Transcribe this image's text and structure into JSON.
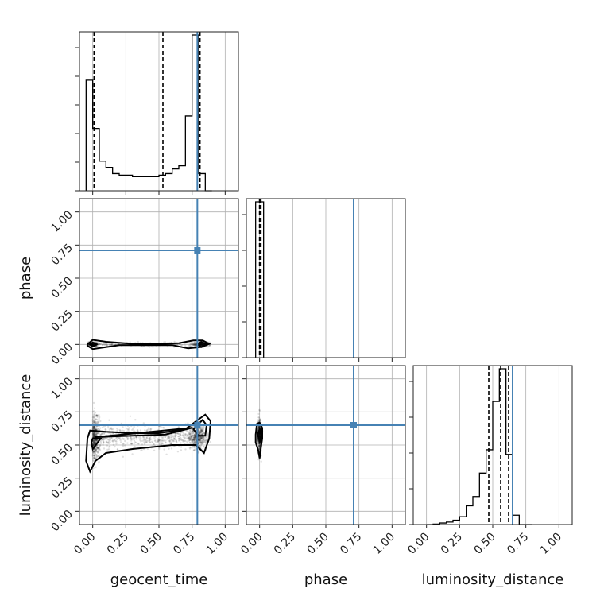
{
  "chart_data": {
    "type": "corner",
    "parameters": [
      "geocent_time",
      "phase",
      "luminosity_distance"
    ],
    "axis_labels": {
      "geocent_time": "geocent_time",
      "phase": "phase",
      "luminosity_distance": "luminosity_distance"
    },
    "range": [
      -0.1,
      1.1
    ],
    "ticks": [
      "0.00",
      "0.25",
      "0.50",
      "0.75",
      "1.00"
    ],
    "tick_values": [
      0,
      0.25,
      0.5,
      0.75,
      1.0
    ],
    "grid": true,
    "truths": {
      "geocent_time": 0.79,
      "phase": 0.71,
      "luminosity_distance": 0.65
    },
    "truth_color": "#4682b4",
    "histograms": {
      "geocent_time": {
        "bin_edges": [
          -0.05,
          0.0,
          0.05,
          0.1,
          0.15,
          0.2,
          0.25,
          0.3,
          0.35,
          0.4,
          0.45,
          0.5,
          0.55,
          0.6,
          0.65,
          0.7,
          0.75,
          0.8,
          0.85,
          0.9
        ],
        "counts": [
          0.71,
          0.4,
          0.19,
          0.15,
          0.11,
          0.1,
          0.1,
          0.09,
          0.09,
          0.09,
          0.09,
          0.1,
          0.11,
          0.14,
          0.16,
          0.48,
          1.0,
          0.11,
          0.0
        ],
        "quantiles": [
          0.01,
          0.53,
          0.81
        ]
      },
      "phase": {
        "bin_edges": [
          -0.03,
          0.0,
          0.03
        ],
        "counts": [
          1.0,
          1.0
        ],
        "quantiles": [
          0.0,
          0.0,
          0.01
        ]
      },
      "luminosity_distance": {
        "bin_edges": [
          0.0,
          0.05,
          0.1,
          0.15,
          0.2,
          0.25,
          0.3,
          0.35,
          0.4,
          0.45,
          0.5,
          0.55,
          0.6,
          0.65,
          0.7,
          0.75,
          0.8
        ],
        "counts": [
          0.0,
          0.003,
          0.01,
          0.016,
          0.028,
          0.05,
          0.12,
          0.18,
          0.33,
          0.48,
          0.79,
          1.0,
          0.45,
          0.06,
          0.0,
          0.0
        ],
        "quantiles": [
          0.47,
          0.56,
          0.62
        ]
      }
    },
    "contours": {
      "phase_vs_geocent_time": {
        "outer": [
          [
            -0.04,
            0.0
          ],
          [
            0.0,
            0.035
          ],
          [
            0.1,
            0.02
          ],
          [
            0.3,
            0.005
          ],
          [
            0.5,
            0.005
          ],
          [
            0.65,
            0.01
          ],
          [
            0.76,
            0.03
          ],
          [
            0.83,
            0.03
          ],
          [
            0.88,
            0.005
          ],
          [
            0.82,
            -0.02
          ],
          [
            0.72,
            -0.03
          ],
          [
            0.6,
            -0.005
          ],
          [
            0.4,
            -0.005
          ],
          [
            0.2,
            -0.005
          ],
          [
            0.1,
            -0.02
          ],
          [
            0.0,
            -0.035
          ],
          [
            -0.04,
            -0.01
          ]
        ],
        "inner": [
          [
            [
              -0.02,
              0.0
            ],
            [
              0.0,
              0.015
            ],
            [
              0.03,
              0.0
            ],
            [
              0.0,
              -0.015
            ]
          ],
          [
            [
              0.79,
              0.0
            ],
            [
              0.82,
              0.02
            ],
            [
              0.86,
              0.0
            ],
            [
              0.82,
              -0.02
            ]
          ]
        ]
      },
      "luminosity_distance_vs_geocent_time": {
        "outer": [
          [
            -0.04,
            0.55
          ],
          [
            -0.02,
            0.61
          ],
          [
            0.1,
            0.6
          ],
          [
            0.3,
            0.59
          ],
          [
            0.5,
            0.59
          ],
          [
            0.7,
            0.62
          ],
          [
            0.78,
            0.68
          ],
          [
            0.85,
            0.73
          ],
          [
            0.89,
            0.68
          ],
          [
            0.88,
            0.55
          ],
          [
            0.84,
            0.44
          ],
          [
            0.78,
            0.5
          ],
          [
            0.6,
            0.5
          ],
          [
            0.3,
            0.47
          ],
          [
            0.1,
            0.44
          ],
          [
            0.02,
            0.38
          ],
          [
            -0.02,
            0.3
          ],
          [
            -0.05,
            0.38
          ]
        ],
        "inner": [
          [
            [
              -0.01,
              0.52
            ],
            [
              0.0,
              0.55
            ],
            [
              0.06,
              0.55
            ],
            [
              0.0,
              0.47
            ]
          ],
          [
            [
              0.76,
              0.62
            ],
            [
              0.83,
              0.69
            ],
            [
              0.86,
              0.65
            ],
            [
              0.85,
              0.57
            ],
            [
              0.8,
              0.57
            ]
          ],
          [
            [
              0.02,
              0.56
            ],
            [
              0.3,
              0.57
            ],
            [
              0.55,
              0.58
            ],
            [
              0.75,
              0.63
            ]
          ]
        ]
      },
      "luminosity_distance_vs_phase": {
        "outer": [
          [
            -0.03,
            0.58
          ],
          [
            -0.02,
            0.66
          ],
          [
            0.0,
            0.67
          ],
          [
            0.02,
            0.63
          ],
          [
            0.02,
            0.55
          ],
          [
            0.01,
            0.48
          ],
          [
            0.0,
            0.4
          ],
          [
            -0.01,
            0.46
          ],
          [
            -0.03,
            0.52
          ]
        ],
        "inner": [
          [
            [
              -0.015,
              0.58
            ],
            [
              0.0,
              0.62
            ],
            [
              0.012,
              0.58
            ],
            [
              0.0,
              0.53
            ]
          ]
        ]
      }
    }
  }
}
